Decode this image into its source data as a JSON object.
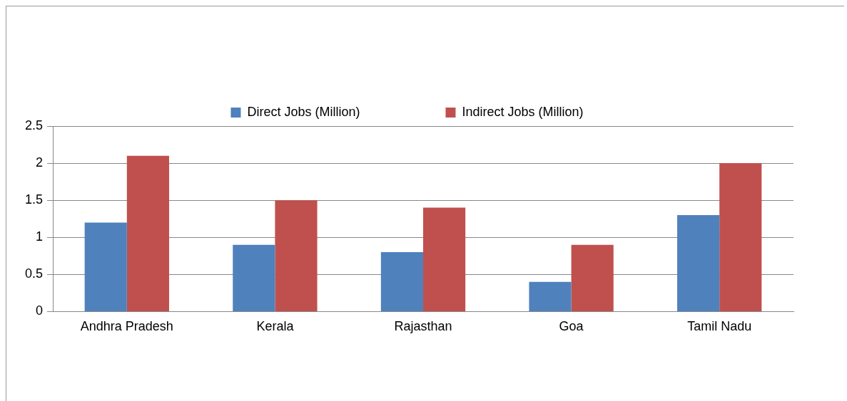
{
  "chart_data": {
    "type": "bar",
    "categories": [
      "Andhra Pradesh",
      "Kerala",
      "Rajasthan",
      "Goa",
      "Tamil Nadu"
    ],
    "series": [
      {
        "name": "Direct Jobs (Million)",
        "color": "#4f81bd",
        "values": [
          1.2,
          0.9,
          0.8,
          0.4,
          1.3
        ]
      },
      {
        "name": "Indirect Jobs (Million)",
        "color": "#c0504d",
        "values": [
          2.1,
          1.5,
          1.4,
          0.9,
          2.0
        ]
      }
    ],
    "ylim": [
      0,
      2.5
    ],
    "yticks": [
      0,
      0.5,
      1,
      1.5,
      2,
      2.5
    ],
    "grid": "y",
    "legend": "top"
  }
}
